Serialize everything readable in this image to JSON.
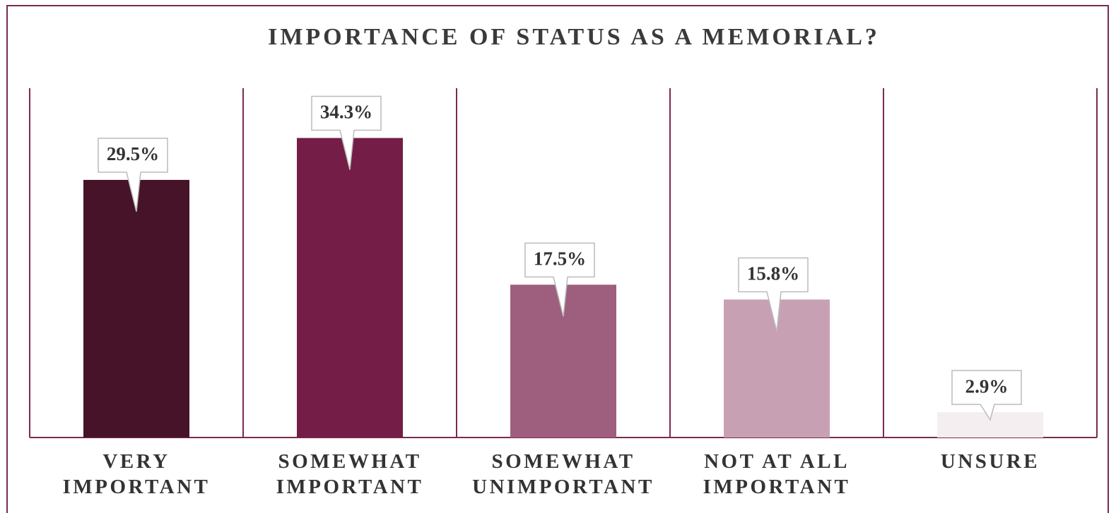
{
  "chart_data": {
    "type": "bar",
    "title": "IMPORTANCE OF STATUS AS A MEMORIAL?",
    "categories": [
      "VERY IMPORTANT",
      "SOMEWHAT IMPORTANT",
      "SOMEWHAT UNIMPORTANT",
      "NOT AT ALL IMPORTANT",
      "UNSURE"
    ],
    "values": [
      29.5,
      34.3,
      17.5,
      15.8,
      2.9
    ],
    "value_labels": [
      "29.5%",
      "34.3%",
      "17.5%",
      "15.8%",
      "2.9%"
    ],
    "colors": [
      "#461329",
      "#731d47",
      "#9e5f7e",
      "#c8a0b4",
      "#f4eef0"
    ],
    "ylim": [
      0,
      40
    ]
  }
}
